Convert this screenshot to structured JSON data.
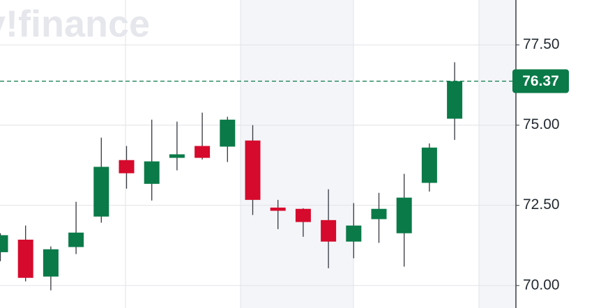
{
  "chart_data": {
    "type": "candlestick",
    "watermark": "y!finance",
    "series": [
      {
        "name": null,
        "up_color": "#0a7a48",
        "down_color": "#d60a2c",
        "open": [
          71.04,
          71.43,
          70.28,
          71.2,
          72.15,
          73.91,
          73.17,
          73.98,
          74.35,
          74.33,
          74.52,
          72.43,
          72.39,
          72.04,
          71.37,
          72.07,
          71.63,
          73.2,
          75.2
        ],
        "high": [
          71.63,
          71.87,
          71.22,
          72.61,
          74.61,
          74.35,
          75.17,
          75.11,
          75.39,
          75.26,
          75.0,
          72.67,
          72.41,
          73.0,
          72.57,
          72.89,
          73.48,
          74.43,
          76.96
        ],
        "low": [
          70.76,
          70.13,
          69.85,
          70.98,
          71.96,
          73.02,
          72.65,
          73.59,
          73.93,
          73.85,
          72.2,
          71.76,
          71.52,
          70.54,
          70.85,
          71.33,
          70.59,
          72.93,
          74.54
        ],
        "close": [
          71.57,
          70.24,
          71.13,
          71.65,
          73.7,
          73.5,
          73.87,
          74.09,
          73.98,
          75.17,
          72.67,
          72.33,
          71.98,
          71.37,
          71.87,
          72.39,
          72.74,
          74.3,
          76.37
        ]
      }
    ],
    "current_price": 76.37,
    "current_price_color": "#0a7a48",
    "ylim": [
      69.3,
      78.9
    ],
    "yticks": [
      {
        "value": 70,
        "label": "70.00"
      },
      {
        "value": 72.5,
        "label": "72.50"
      },
      {
        "value": 75,
        "label": "75.00"
      },
      {
        "value": 77.5,
        "label": "77.50"
      }
    ],
    "grid": true
  }
}
